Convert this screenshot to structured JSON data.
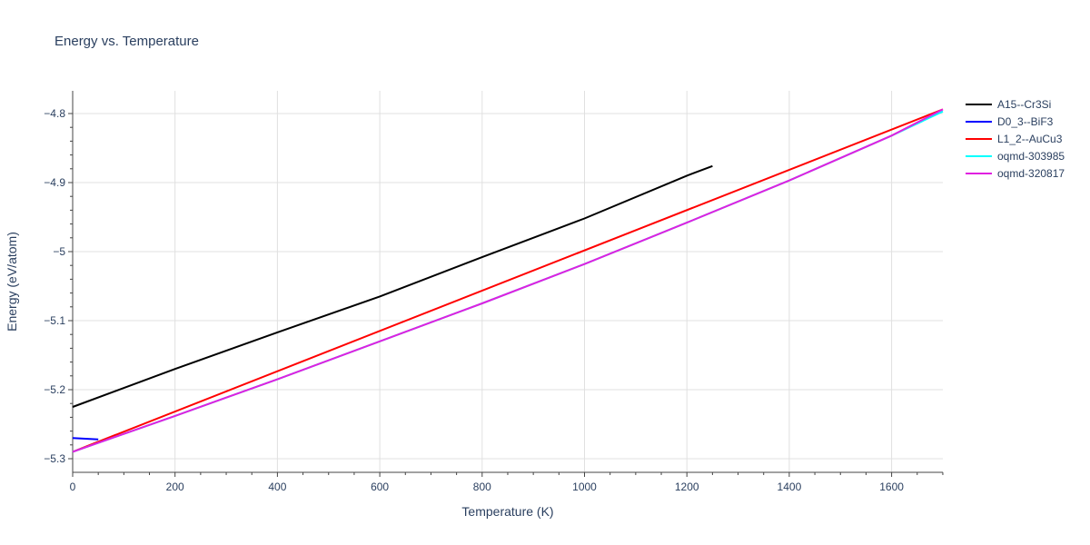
{
  "chart_data": {
    "type": "line",
    "title": "Energy vs. Temperature",
    "xlabel": "Temperature (K)",
    "ylabel": "Energy (eV/atom)",
    "xlim": [
      0,
      1700
    ],
    "ylim": [
      -5.3,
      -4.8
    ],
    "x_ticks": [
      0,
      200,
      400,
      600,
      800,
      1000,
      1200,
      1400,
      1600
    ],
    "x_tick_labels": [
      "0",
      "200",
      "400",
      "600",
      "800",
      "1000",
      "1200",
      "1400",
      "1600"
    ],
    "y_ticks": [
      -4.8,
      -4.9,
      -5.0,
      -5.1,
      -5.2,
      -5.3
    ],
    "y_tick_labels": [
      "−4.8",
      "−4.9",
      "−5",
      "−5.1",
      "−5.2",
      "−5.3"
    ],
    "grid": true,
    "legend_position": "right",
    "series": [
      {
        "name": "A15--Cr3Si",
        "color": "#000000",
        "x": [
          0,
          200,
          400,
          600,
          800,
          1000,
          1200,
          1250
        ],
        "y": [
          -5.225,
          -5.17,
          -5.117,
          -5.065,
          -5.008,
          -4.952,
          -4.89,
          -4.876
        ]
      },
      {
        "name": "D0_3--BiF3",
        "color": "#0000ff",
        "x": [
          0,
          50
        ],
        "y": [
          -5.27,
          -5.272
        ]
      },
      {
        "name": "L1_2--AuCu3",
        "color": "#ff0000",
        "x": [
          0,
          1700
        ],
        "y": [
          -5.29,
          -4.794
        ]
      },
      {
        "name": "oqmd-303985",
        "color": "#00ffff",
        "x": [
          0,
          200,
          400,
          600,
          800,
          1000,
          1200,
          1400,
          1600,
          1700
        ],
        "y": [
          -5.29,
          -5.238,
          -5.185,
          -5.13,
          -5.075,
          -5.018,
          -4.958,
          -4.897,
          -4.832,
          -4.797
        ]
      },
      {
        "name": "oqmd-320817",
        "color": "#e020e0",
        "x": [
          0,
          200,
          400,
          600,
          800,
          1000,
          1200,
          1400,
          1600,
          1700
        ],
        "y": [
          -5.29,
          -5.238,
          -5.185,
          -5.13,
          -5.075,
          -5.018,
          -4.958,
          -4.897,
          -4.832,
          -4.794
        ]
      }
    ]
  }
}
